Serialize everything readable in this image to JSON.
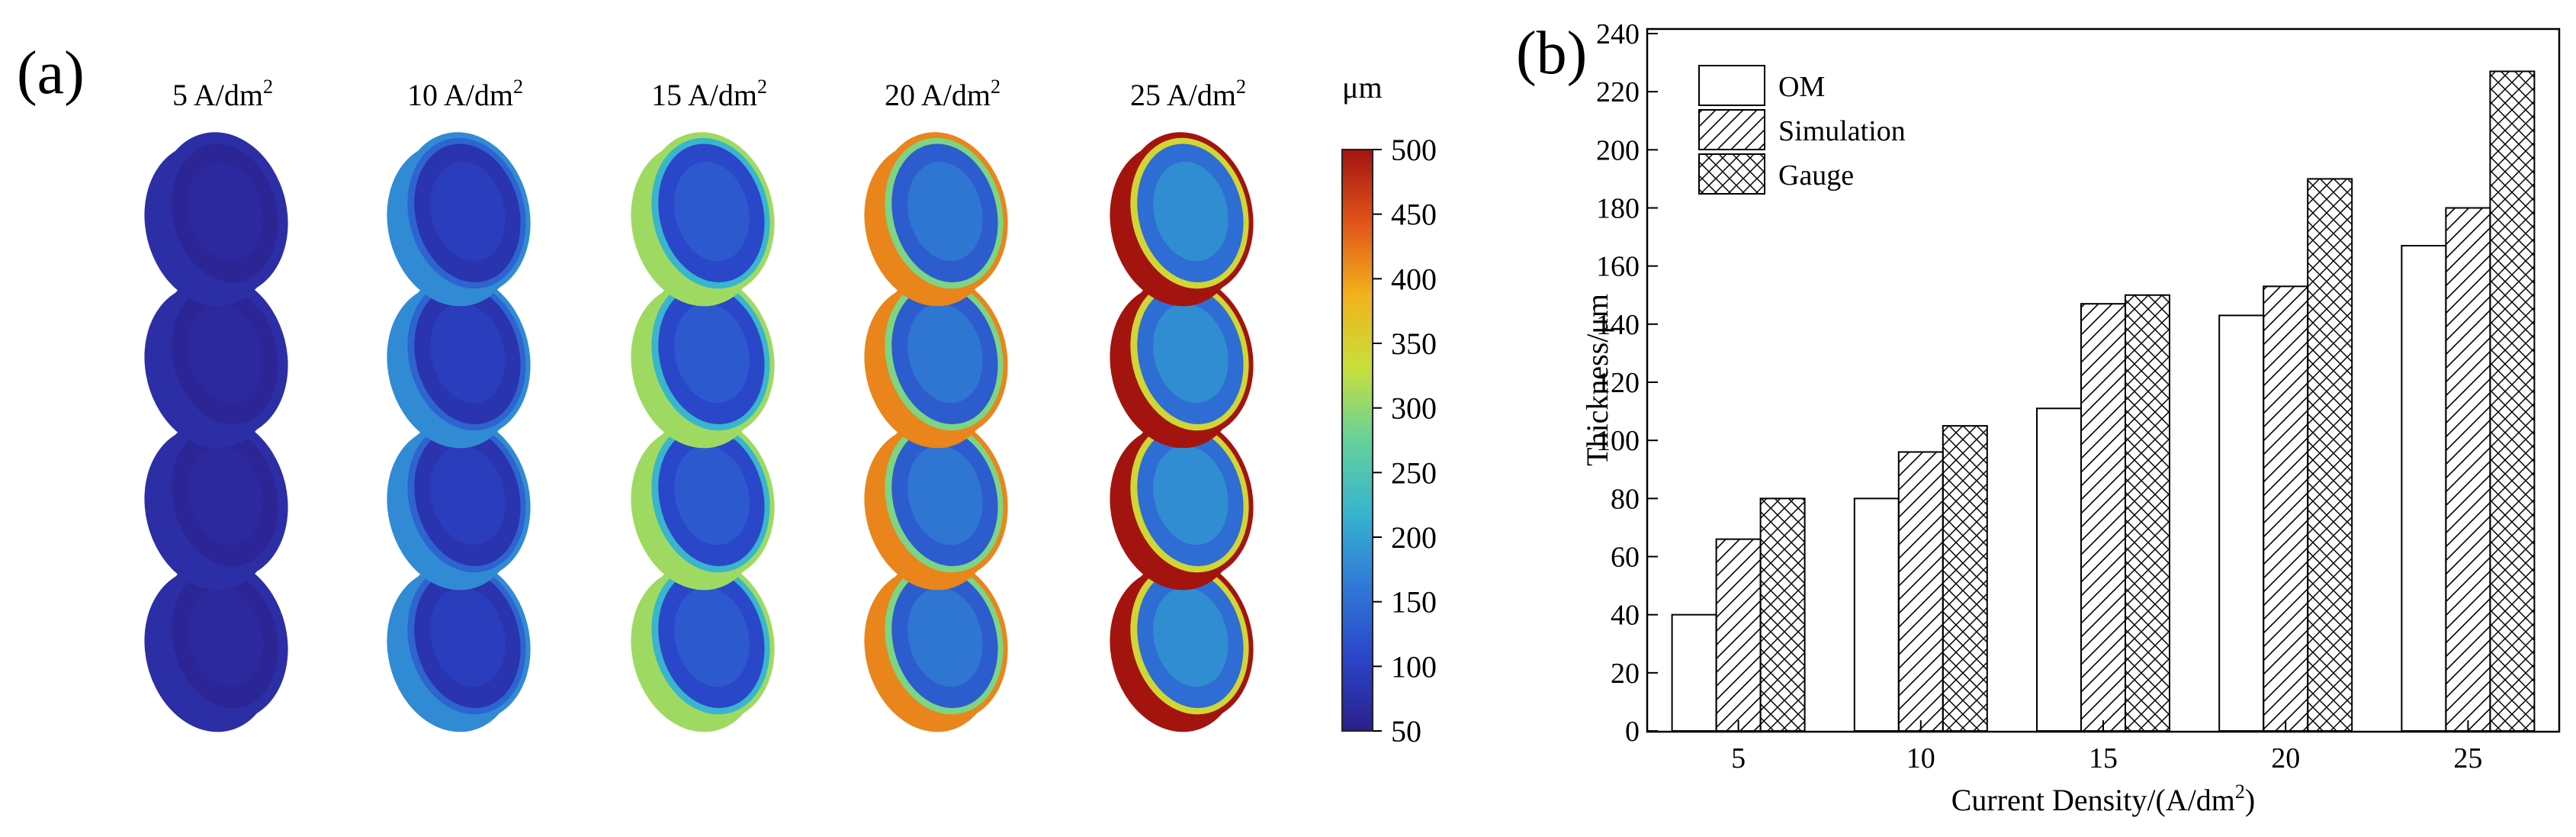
{
  "panel_a": {
    "label": "(a)",
    "columns": [
      {
        "base": "5 A/dm",
        "sup": "2",
        "level": 0.0
      },
      {
        "base": "10 A/dm",
        "sup": "2",
        "level": 0.25
      },
      {
        "base": "15 A/dm",
        "sup": "2",
        "level": 0.55
      },
      {
        "base": "20 A/dm",
        "sup": "2",
        "level": 0.8
      },
      {
        "base": "25 A/dm",
        "sup": "2",
        "level": 1.0
      }
    ],
    "colorbar": {
      "unit": "μm",
      "min": 50,
      "max": 500,
      "ticks": [
        "500",
        "450",
        "400",
        "350",
        "300",
        "250",
        "200",
        "150",
        "100",
        "50"
      ],
      "stops": [
        "#2b1f8c",
        "#2a45c8",
        "#2f79d6",
        "#37b4cf",
        "#64d29a",
        "#c8df3a",
        "#f2b21c",
        "#e0541a",
        "#a3140f"
      ]
    }
  },
  "chart_data": {
    "type": "bar",
    "panel_label": "(b)",
    "categories": [
      "5",
      "10",
      "15",
      "20",
      "25"
    ],
    "series": [
      {
        "name": "OM",
        "values": [
          40,
          80,
          111,
          143,
          167
        ],
        "pattern": "none"
      },
      {
        "name": "Simulation",
        "values": [
          66,
          96,
          147,
          153,
          180
        ],
        "pattern": "hatch"
      },
      {
        "name": "Gauge",
        "values": [
          80,
          105,
          150,
          190,
          227
        ],
        "pattern": "cross"
      }
    ],
    "ylim": [
      0,
      240
    ],
    "yticks": [
      "0",
      "20",
      "40",
      "60",
      "80",
      "100",
      "120",
      "140",
      "160",
      "180",
      "200",
      "220",
      "240"
    ],
    "ylabel": "Thickness/μm",
    "xlabel_base": "Current Density/(A/dm",
    "xlabel_sup": "2",
    "xlabel_end": ")",
    "legend_position": "top-left"
  }
}
